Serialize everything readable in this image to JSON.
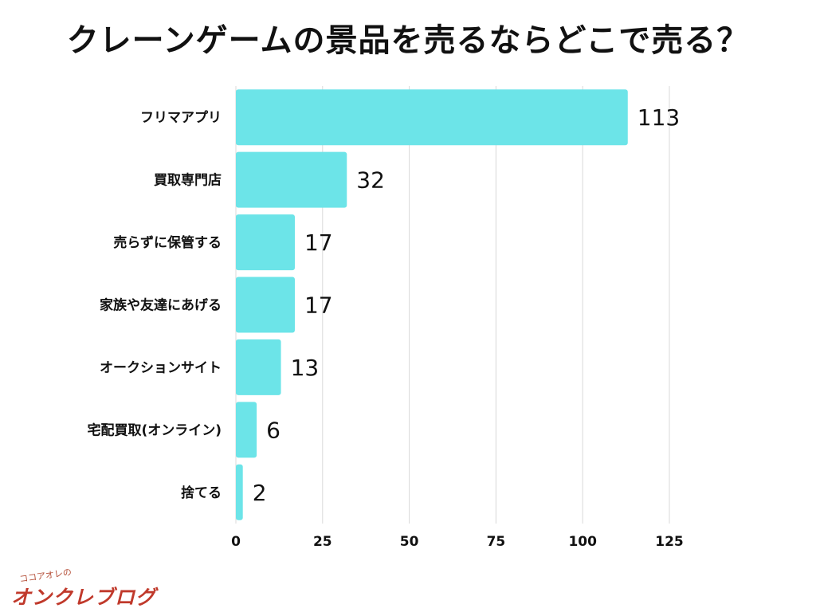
{
  "title": "クレーンゲームの景品を売るならどこで売る？",
  "chart_data": {
    "type": "bar",
    "orientation": "horizontal",
    "categories": [
      "フリマアプリ",
      "買取専門店",
      "売らずに保管する",
      "家族や友達にあげる",
      "オークションサイト",
      "宅配買取(オンライン)",
      "捨てる"
    ],
    "values": [
      113,
      32,
      17,
      17,
      13,
      6,
      2
    ],
    "xlim": [
      0,
      125
    ],
    "xticks": [
      "0",
      "25",
      "50",
      "75",
      "100",
      "125"
    ],
    "grid": true,
    "bar_color": "#6ce4e8",
    "gridline_color": "#d9d9d9"
  },
  "logo": {
    "tagline": "ココアオレの",
    "name": "オンクレブログ"
  }
}
